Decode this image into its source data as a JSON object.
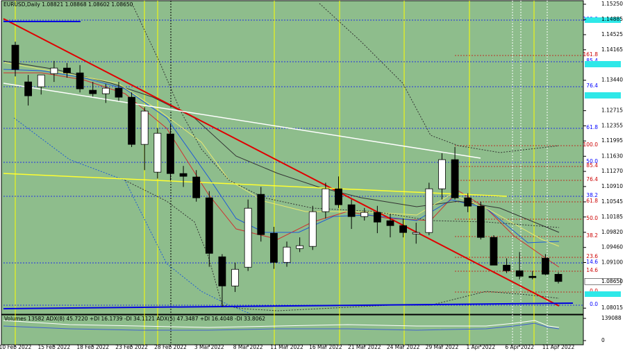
{
  "chart_data": {
    "type": "candlestick",
    "title": "EURUSD,Daily  1.08821 1.08868 1.08602 1.08650",
    "last_price_label": "1.08650",
    "up_color": "#ffffff",
    "down_color": "#000000",
    "ylim": [
      1.0787,
      1.1535
    ],
    "yticks": [
      {
        "value": 1.1525,
        "label": "1.15250"
      },
      {
        "value": 1.14885,
        "label": "1.14885"
      },
      {
        "value": 1.14525,
        "label": "1.14525"
      },
      {
        "value": 1.14165,
        "label": "1.14165"
      },
      {
        "value": 1.1344,
        "label": "1.13440"
      },
      {
        "value": 1.12715,
        "label": "1.12715"
      },
      {
        "value": 1.12355,
        "label": "1.12355"
      },
      {
        "value": 1.11995,
        "label": "1.11995"
      },
      {
        "value": 1.1163,
        "label": "1.11630"
      },
      {
        "value": 1.1127,
        "label": "1.11270"
      },
      {
        "value": 1.1091,
        "label": "1.10910"
      },
      {
        "value": 1.10545,
        "label": "1.10545"
      },
      {
        "value": 1.10185,
        "label": "1.10185"
      },
      {
        "value": 1.0982,
        "label": "1.09820"
      },
      {
        "value": 1.0946,
        "label": "1.09460"
      },
      {
        "value": 1.091,
        "label": "1.09100"
      },
      {
        "value": 1.08015,
        "label": "1.08015"
      }
    ],
    "x_labels": [
      "10 Feb 2022",
      "15 Feb 2022",
      "18 Feb 2022",
      "23 Feb 2022",
      "28 Feb 2022",
      "3 Mar 2022",
      "8 Mar 2022",
      "11 Mar 2022",
      "16 Mar 2022",
      "21 Mar 2022",
      "24 Mar 2022",
      "29 Mar 2022",
      "1 Apr 2022",
      "6 Apr 2022",
      "11 Apr 2022"
    ],
    "open": [
      1.14275,
      1.134,
      1.13284,
      1.13598,
      1.1373,
      1.13615,
      1.13202,
      1.13119,
      1.13251,
      1.13036,
      1.11913,
      1.11252,
      1.12161,
      1.11219,
      1.11137,
      1.10641,
      1.09237,
      1.08543,
      1.08989,
      1.10724,
      1.09798,
      1.09104,
      1.09435,
      1.09485,
      1.10311,
      1.10856,
      1.10476,
      1.10195,
      1.10294,
      1.10096,
      1.0998,
      1.09782,
      1.09815,
      1.10856,
      1.1155,
      1.10641,
      1.10443,
      1.09699,
      1.09038,
      1.08906,
      1.08774,
      1.09204,
      1.08821
    ],
    "high": [
      1.14358,
      1.13565,
      1.135,
      1.139,
      1.1385,
      1.138,
      1.134,
      1.1335,
      1.134,
      1.1315,
      1.128,
      1.123,
      1.124,
      1.114,
      1.113,
      1.108,
      1.093,
      1.091,
      1.106,
      1.109,
      1.0995,
      1.096,
      1.097,
      1.1045,
      1.11,
      1.1115,
      1.106,
      1.104,
      1.1045,
      1.1025,
      1.1015,
      1.1005,
      1.11,
      1.117,
      1.1185,
      1.1075,
      1.1055,
      1.0975,
      1.092,
      1.0935,
      1.089,
      1.093,
      1.08868
    ],
    "low": [
      1.13532,
      1.12838,
      1.131,
      1.134,
      1.135,
      1.1315,
      1.1305,
      1.129,
      1.1295,
      1.1185,
      1.113,
      1.111,
      1.1105,
      1.109,
      1.1055,
      1.09,
      1.0805,
      1.084,
      1.089,
      1.096,
      1.0895,
      1.09,
      1.0935,
      1.094,
      1.1015,
      1.104,
      1.099,
      1.101,
      1.098,
      1.097,
      1.097,
      1.0955,
      1.0975,
      1.106,
      1.106,
      1.103,
      1.0965,
      1.09038,
      1.0885,
      1.087,
      1.087,
      1.088,
      1.08602
    ],
    "close": [
      1.13697,
      1.13069,
      1.13565,
      1.1373,
      1.13615,
      1.13235,
      1.13119,
      1.13251,
      1.13036,
      1.11913,
      1.12706,
      1.12177,
      1.11219,
      1.11153,
      1.10641,
      1.09319,
      1.08543,
      1.08939,
      1.10393,
      1.09765,
      1.09104,
      1.09468,
      1.09501,
      1.10311,
      1.10856,
      1.10476,
      1.10195,
      1.10294,
      1.10063,
      1.0998,
      1.09815,
      1.09815,
      1.10856,
      1.1155,
      1.10641,
      1.10443,
      1.09699,
      1.09038,
      1.08906,
      1.08774,
      1.08741,
      1.08824,
      1.0865
    ],
    "levels": [
      {
        "label": "100.0",
        "color": "#0000ff"
      },
      {
        "label": "161.8",
        "color": "#cc0000"
      },
      {
        "label": "85.4",
        "color": "#0000ff"
      },
      {
        "label": "76.4",
        "color": "#0000ff"
      },
      {
        "label": "61.8",
        "color": "#0000ff"
      },
      {
        "label": "100.0",
        "color": "#cc0000"
      },
      {
        "label": "50.0",
        "color": "#0000ff"
      },
      {
        "label": "85.4",
        "color": "#cc0000"
      },
      {
        "label": "76.4",
        "color": "#cc0000"
      },
      {
        "label": "38.2",
        "color": "#0000ff"
      },
      {
        "label": "61.8",
        "color": "#cc0000"
      },
      {
        "label": "50.0",
        "color": "#cc0000"
      },
      {
        "label": "38.2",
        "color": "#cc0000"
      },
      {
        "label": "23.6",
        "color": "#cc0000"
      },
      {
        "label": "14.6",
        "color": "#0000ff"
      },
      {
        "label": "14.6",
        "color": "#cc0000"
      },
      {
        "label": "0.0",
        "color": "#cc0000"
      },
      {
        "label": "0.0",
        "color": "#0000ff"
      }
    ],
    "volume_panel": {
      "label": "Volumes 13582  ADX(8) 45.7220 +DI 16.1739 -DI 34.1121  ADX(5) 47.3487 +DI 16.4048 -DI 33.8062",
      "ylim": [
        0,
        139088
      ],
      "yticks": [
        139088,
        0
      ]
    }
  }
}
